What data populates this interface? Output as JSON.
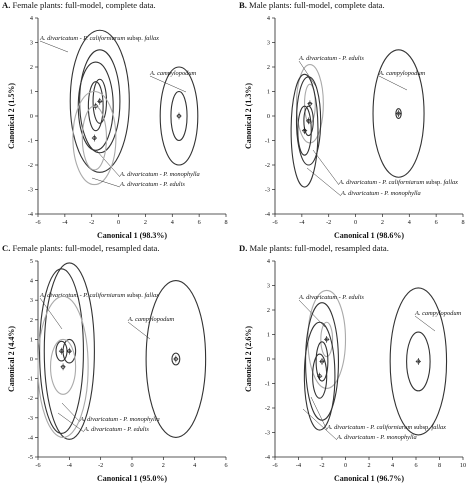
{
  "chart_data": [
    {
      "id": "A",
      "type": "scatter",
      "panel_letter": "A.",
      "title": "Female plants: full-model, complete data.",
      "xlabel": "Canonical 1 (98.3%)",
      "ylabel": "Canonical 2 (1.5%)",
      "xlim": [
        -6,
        8
      ],
      "ylim": [
        -4,
        4
      ],
      "xticks": [
        "-6",
        "-4",
        "-2",
        "0",
        "2",
        "4",
        "6",
        "8"
      ],
      "yticks": [
        "-4",
        "-3",
        "-2",
        "-1",
        "0",
        "1",
        "2",
        "3",
        "4"
      ],
      "groups": [
        {
          "name_parts": [
            "A. divaricatum - P. californiarum",
            " subsp. ",
            "fallax"
          ],
          "center": [
            -1.4,
            0.6
          ],
          "ellipses": [
            [
              0.5,
              0.9
            ],
            [
              1.5,
              2.1
            ],
            [
              2.2,
              2.9
            ]
          ],
          "color": "#333333"
        },
        {
          "name_parts": [
            "A. divaricatum - P. monophylla"
          ],
          "center": [
            -1.7,
            0.4
          ],
          "ellipses": [
            [
              0.55,
              1.0
            ],
            [
              1.3,
              1.8
            ]
          ],
          "color": "#333333"
        },
        {
          "name_parts": [
            "A. divaricatum - P. edulis"
          ],
          "center": [
            -1.8,
            -0.9
          ],
          "ellipses": [
            [
              0.9,
              1.3
            ],
            [
              1.6,
              1.9
            ]
          ],
          "color": "#aaaaaa"
        },
        {
          "name_parts": [
            "A. campylopodum"
          ],
          "center": [
            4.5,
            0.0
          ],
          "ellipses": [
            [
              0.6,
              1.0
            ],
            [
              1.4,
              2.0
            ]
          ],
          "color": "#333333"
        }
      ]
    },
    {
      "id": "B",
      "type": "scatter",
      "panel_letter": "B.",
      "title": "Male plants: full-model, complete data.",
      "xlabel": "Canonical 1 (98.6%)",
      "ylabel": "Canonical 2 (1.3%)",
      "xlim": [
        -6,
        8
      ],
      "ylim": [
        -4,
        4
      ],
      "xticks": [
        "-6",
        "-4",
        "-2",
        "0",
        "2",
        "4",
        "6",
        "8"
      ],
      "yticks": [
        "-4",
        "-3",
        "-2",
        "-1",
        "0",
        "1",
        "2",
        "3",
        "4"
      ],
      "groups": [
        {
          "name_parts": [
            "A. divaricatum - P. edulis"
          ],
          "center": [
            -3.4,
            0.5
          ],
          "ellipses": [
            [
              0.4,
              0.8
            ],
            [
              1.0,
              1.6
            ]
          ],
          "color": "#aaaaaa"
        },
        {
          "name_parts": [
            "A. divaricatum - P. californiarum",
            " subsp. ",
            "fallax"
          ],
          "center": [
            -3.5,
            -0.2
          ],
          "ellipses": [
            [
              0.35,
              0.6
            ],
            [
              0.9,
              1.8
            ]
          ],
          "color": "#333333"
        },
        {
          "name_parts": [
            "A. divaricatum - P. monophylla"
          ],
          "center": [
            -3.8,
            -0.6
          ],
          "ellipses": [
            [
              0.5,
              1.0
            ],
            [
              1.0,
              2.3
            ]
          ],
          "color": "#333333"
        },
        {
          "name_parts": [
            "A. campylopodum"
          ],
          "center": [
            3.2,
            0.1
          ],
          "ellipses": [
            [
              0.2,
              0.2
            ],
            [
              1.9,
              2.6
            ]
          ],
          "color": "#333333"
        }
      ]
    },
    {
      "id": "C",
      "type": "scatter",
      "panel_letter": "C.",
      "title": "Female plants: full-model, resampled data.",
      "xlabel": "Canonical 1 (95.0%)",
      "ylabel": "Canonical 2 (4.4%)",
      "xlim": [
        -6,
        6
      ],
      "ylim": [
        -5,
        5
      ],
      "xticks": [
        "-6",
        "-4",
        "-2",
        "0",
        "2",
        "4",
        "6"
      ],
      "yticks": [
        "-5",
        "-4",
        "-3",
        "-2",
        "-1",
        "0",
        "1",
        "2",
        "3",
        "4",
        "5"
      ],
      "groups": [
        {
          "name_parts": [
            "A. divaricatum - P. californiarum",
            " subsp. ",
            "fallax"
          ],
          "center": [
            -4.0,
            0.4
          ],
          "ellipses": [
            [
              0.4,
              0.6
            ],
            [
              1.6,
              4.5
            ]
          ],
          "color": "#333333"
        },
        {
          "name_parts": [
            "A. divaricatum - P. monophylla"
          ],
          "center": [
            -4.5,
            0.4
          ],
          "ellipses": [
            [
              0.35,
              0.5
            ],
            [
              1.4,
              4.2
            ]
          ],
          "color": "#333333"
        },
        {
          "name_parts": [
            "A. divaricatum - P. edulis"
          ],
          "center": [
            -4.4,
            -0.4
          ],
          "ellipses": [
            [
              0.8,
              1.4
            ],
            [
              1.6,
              3.6
            ]
          ],
          "color": "#aaaaaa"
        },
        {
          "name_parts": [
            "A. campylopodum"
          ],
          "center": [
            2.8,
            0.0
          ],
          "ellipses": [
            [
              0.25,
              0.3
            ],
            [
              1.9,
              4.0
            ]
          ],
          "color": "#333333"
        }
      ]
    },
    {
      "id": "D",
      "type": "scatter",
      "panel_letter": "D.",
      "title": "Male plants: full-model, resampled data.",
      "xlabel": "Canonical 1 (96.7%)",
      "ylabel": "Canonical 2 (2.6%)",
      "xlim": [
        -6,
        10
      ],
      "ylim": [
        -4,
        4
      ],
      "xticks": [
        "-6",
        "-4",
        "-2",
        "0",
        "2",
        "4",
        "6",
        "8",
        "10"
      ],
      "yticks": [
        "-4",
        "-3",
        "-2",
        "-1",
        "0",
        "1",
        "2",
        "3",
        "4"
      ],
      "groups": [
        {
          "name_parts": [
            "A. divaricatum - P. edulis"
          ],
          "center": [
            -1.6,
            0.8
          ],
          "ellipses": [
            [
              0.5,
              0.7
            ],
            [
              1.6,
              2.0
            ]
          ],
          "color": "#aaaaaa"
        },
        {
          "name_parts": [
            "A. divaricatum - P. californiarum",
            " subsp. ",
            "fallax"
          ],
          "center": [
            -2.0,
            -0.1
          ],
          "ellipses": [
            [
              0.5,
              0.8
            ],
            [
              1.4,
              2.4
            ]
          ],
          "color": "#333333"
        },
        {
          "name_parts": [
            "A. divaricatum - P. monophylla"
          ],
          "center": [
            -2.2,
            -0.7
          ],
          "ellipses": [
            [
              0.6,
              0.9
            ],
            [
              1.3,
              2.2
            ]
          ],
          "color": "#333333"
        },
        {
          "name_parts": [
            "A. campylopodum"
          ],
          "center": [
            6.2,
            -0.1
          ],
          "ellipses": [
            [
              1.0,
              1.2
            ],
            [
              2.4,
              3.0
            ]
          ],
          "color": "#333333"
        }
      ]
    }
  ]
}
